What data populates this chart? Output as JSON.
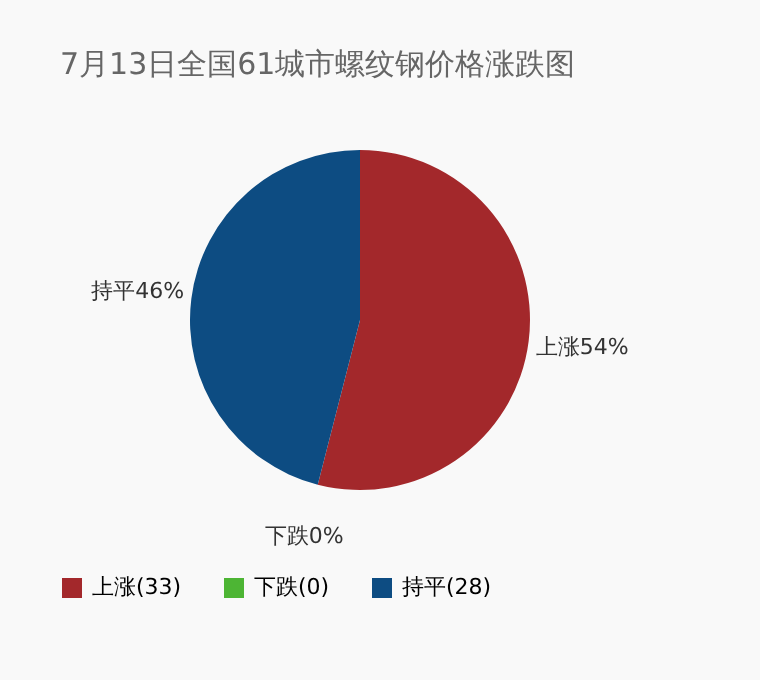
{
  "chart_data": {
    "type": "pie",
    "title": "7月13日全国61城市螺纹钢价格涨跌图",
    "categories": [
      "上涨(33)",
      "下跌(0)",
      "持平(28)"
    ],
    "values": [
      54,
      0,
      46
    ],
    "value_labels": [
      "上涨54%",
      "下跌0%",
      "持平46%"
    ],
    "colors": [
      "#a3282b",
      "#4db534",
      "#0d4c82"
    ],
    "legend": "bottom"
  }
}
